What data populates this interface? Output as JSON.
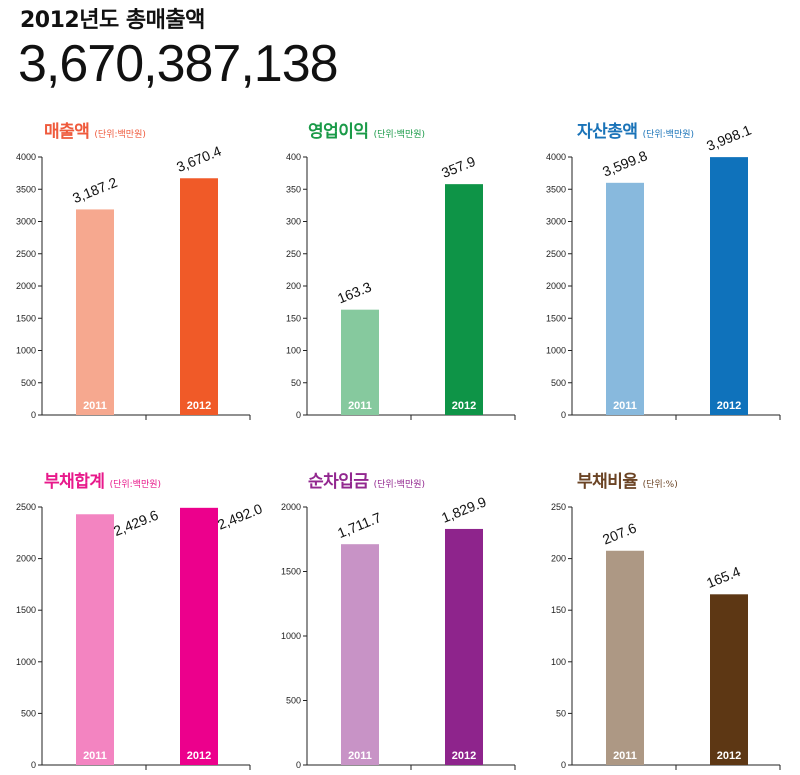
{
  "header": {
    "title": "2012년도 총매출액",
    "total_value": "3,670,387,138"
  },
  "chart_data": [
    {
      "type": "bar",
      "title": "매출액",
      "unit_label": "(단위:백만원)",
      "title_color": "#ef5a3c",
      "categories": [
        "2011",
        "2012"
      ],
      "values": [
        3187.2,
        3670.4
      ],
      "value_labels": [
        "3,187.2",
        "3,670.4"
      ],
      "colors": [
        "#f6a88f",
        "#f05a28"
      ],
      "ylim": [
        0,
        4000
      ],
      "yticks": [
        0,
        500,
        1000,
        1500,
        2000,
        2500,
        3000,
        3500,
        4000
      ],
      "label_position": "top"
    },
    {
      "type": "bar",
      "title": "영업이익",
      "unit_label": "(단위:백만원)",
      "title_color": "#1a9a48",
      "categories": [
        "2011",
        "2012"
      ],
      "values": [
        163.3,
        357.9
      ],
      "value_labels": [
        "163.3",
        "357.9"
      ],
      "colors": [
        "#86c99e",
        "#0e9447"
      ],
      "ylim": [
        0,
        400
      ],
      "yticks": [
        0,
        50,
        100,
        150,
        200,
        250,
        300,
        350,
        400
      ],
      "label_position": "top"
    },
    {
      "type": "bar",
      "title": "자산총액",
      "unit_label": "(단위:백만원)",
      "title_color": "#1a73b8",
      "categories": [
        "2011",
        "2012"
      ],
      "values": [
        3599.8,
        3998.1
      ],
      "value_labels": [
        "3,599.8",
        "3,998.1"
      ],
      "colors": [
        "#88b9dd",
        "#0f72bb"
      ],
      "ylim": [
        0,
        4000
      ],
      "yticks": [
        0,
        500,
        1000,
        1500,
        2000,
        2500,
        3000,
        3500,
        4000
      ],
      "label_position": "top"
    },
    {
      "type": "bar",
      "title": "부채합계",
      "unit_label": "(단위:백만원)",
      "title_color": "#e8198b",
      "categories": [
        "2011",
        "2012"
      ],
      "values": [
        2429.6,
        2492.0
      ],
      "value_labels": [
        "2,429.6",
        "2,492.0"
      ],
      "colors": [
        "#f384c1",
        "#ec008c"
      ],
      "ylim": [
        0,
        2500
      ],
      "yticks": [
        0,
        500,
        1000,
        1500,
        2000,
        2500
      ],
      "label_position": "right"
    },
    {
      "type": "bar",
      "title": "순차입금",
      "unit_label": "(단위:백만원)",
      "title_color": "#92278f",
      "categories": [
        "2011",
        "2012"
      ],
      "values": [
        1711.7,
        1829.9
      ],
      "value_labels": [
        "1,711.7",
        "1,829.9"
      ],
      "colors": [
        "#c893c6",
        "#8e248c"
      ],
      "ylim": [
        0,
        2000
      ],
      "yticks": [
        0,
        500,
        1000,
        1500,
        2000
      ],
      "label_position": "top"
    },
    {
      "type": "bar",
      "title": "부채비율",
      "unit_label": "(단위:%)",
      "title_color": "#6b4425",
      "categories": [
        "2011",
        "2012"
      ],
      "values": [
        207.6,
        165.4
      ],
      "value_labels": [
        "207.6",
        "165.4"
      ],
      "colors": [
        "#ad9884",
        "#5d3714"
      ],
      "ylim": [
        0,
        250
      ],
      "yticks": [
        0,
        50,
        100,
        150,
        200,
        250
      ],
      "label_position": "top"
    }
  ]
}
